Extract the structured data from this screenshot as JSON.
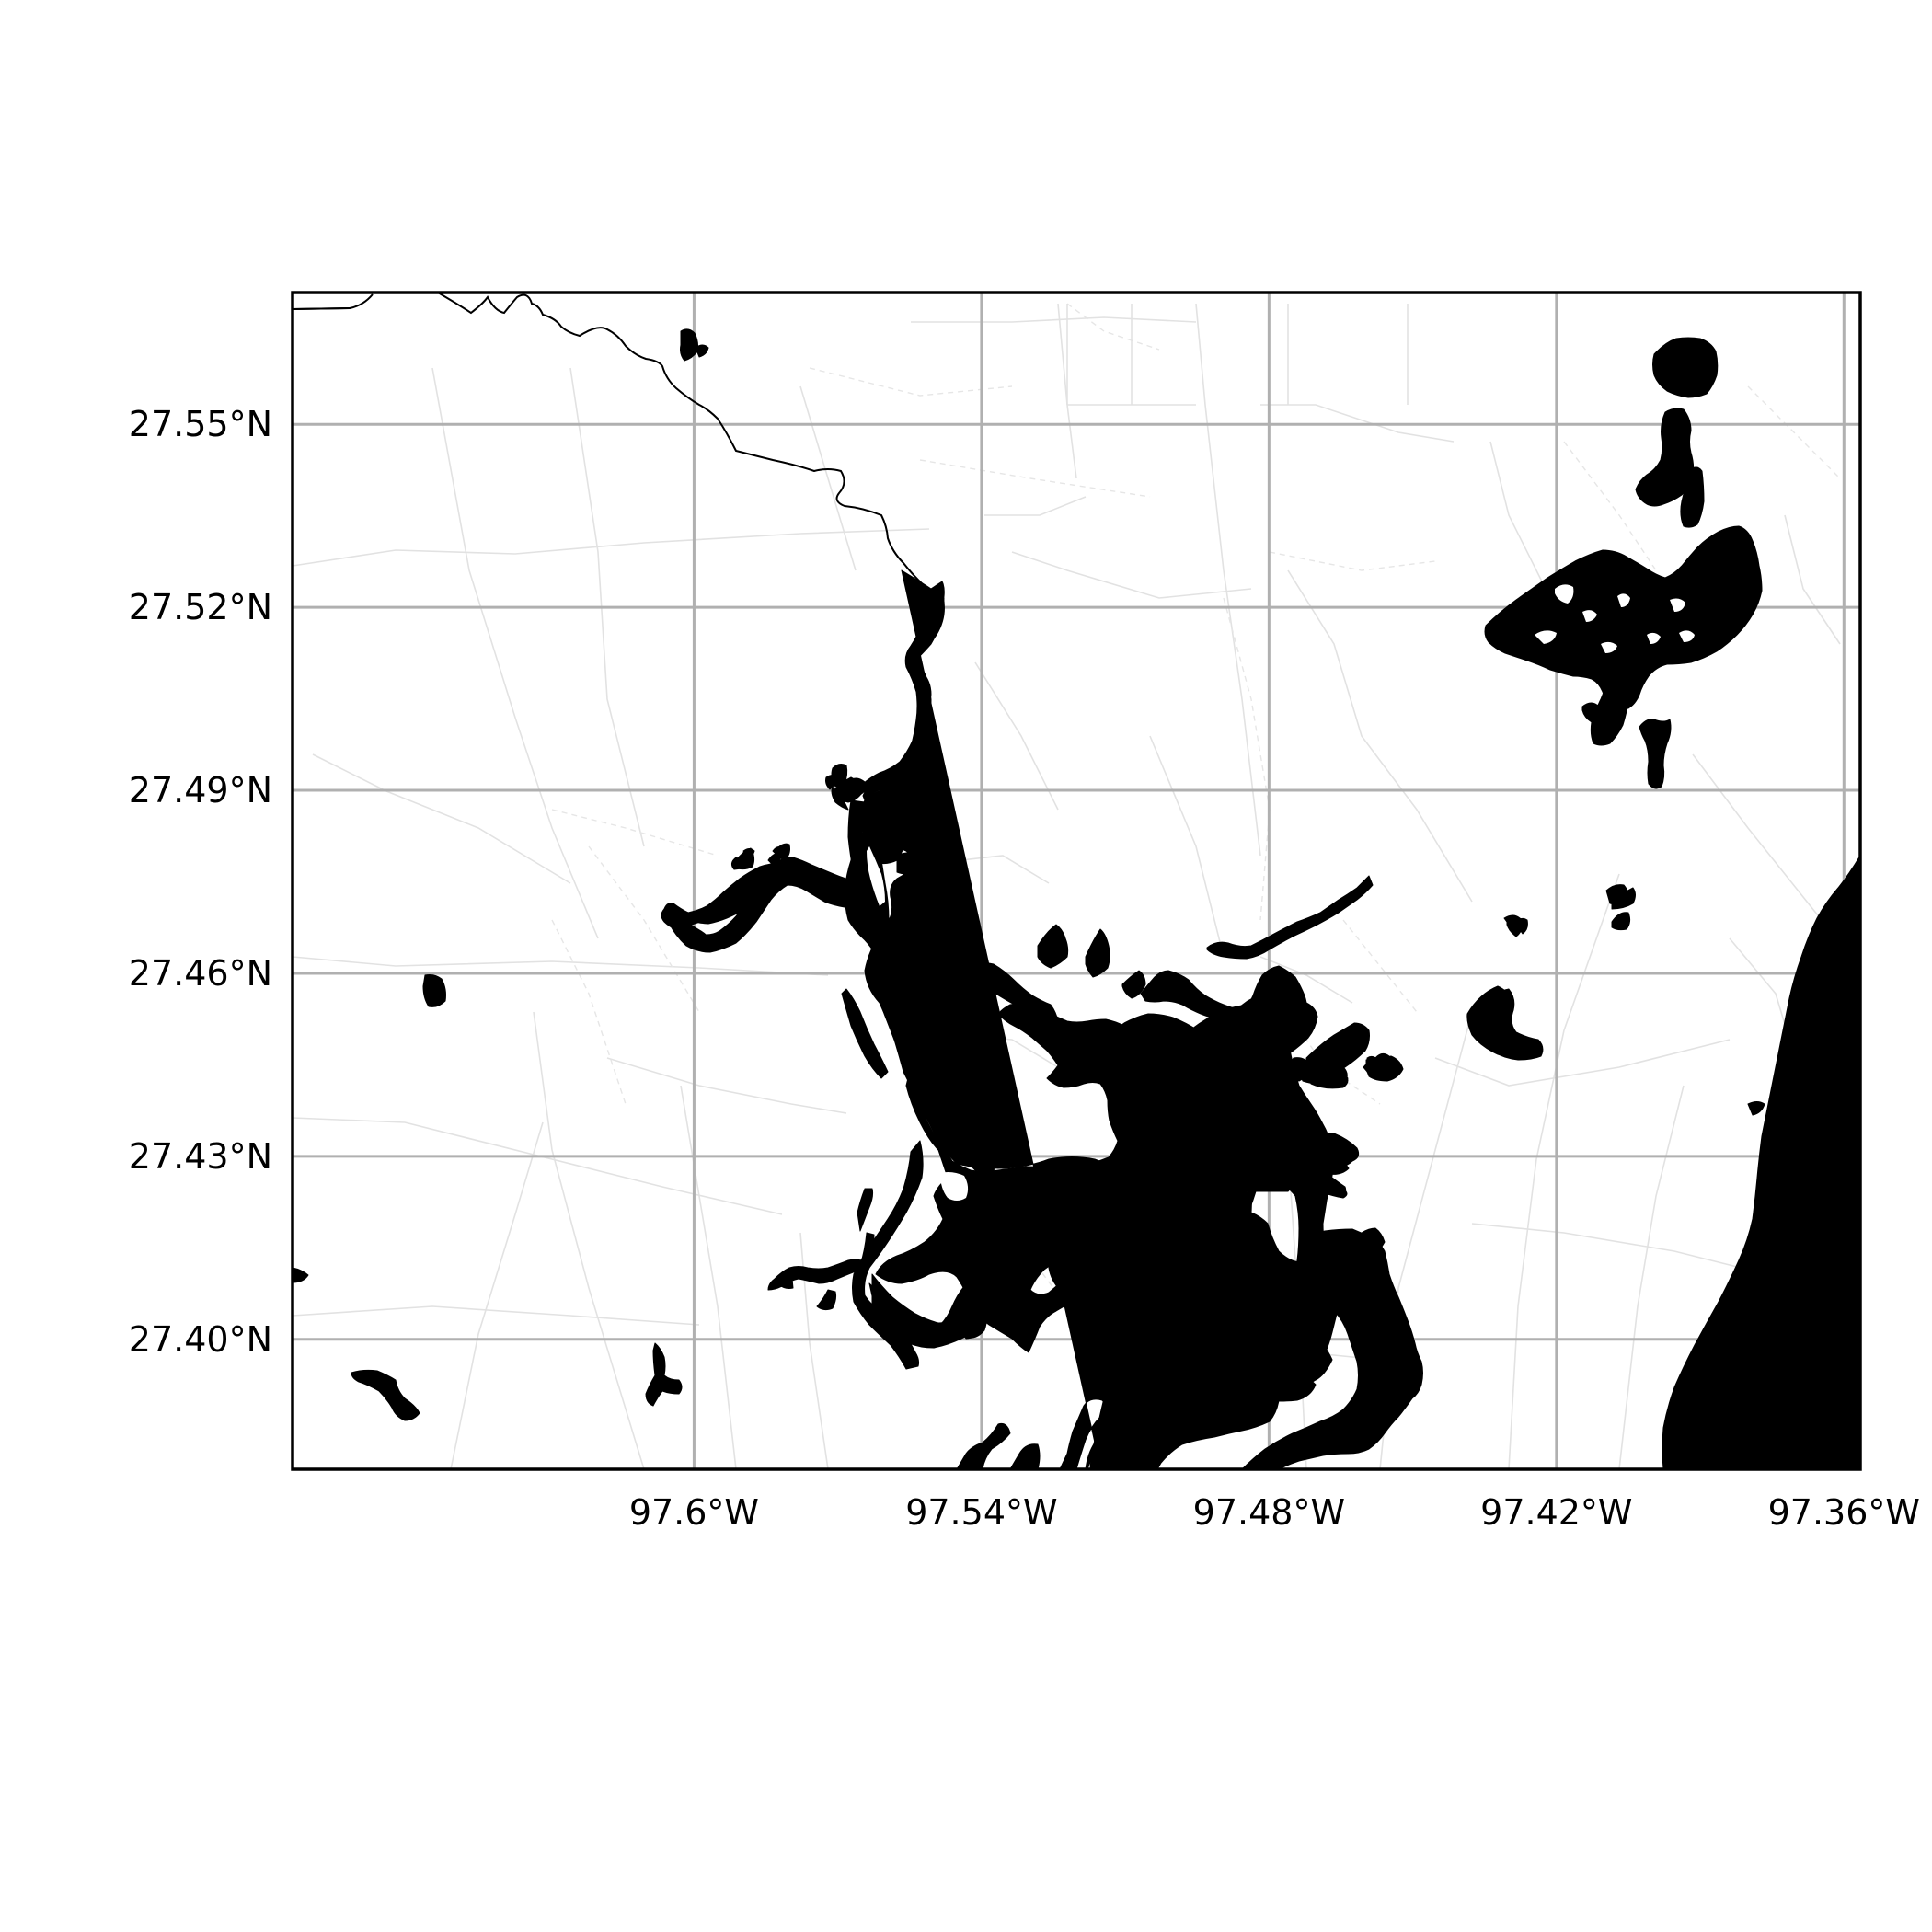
{
  "map": {
    "lon_range": [
      -97.6838,
      -97.3566
    ],
    "lat_range": [
      27.3787,
      27.5716
    ],
    "lon_ticks": [
      {
        "value": -97.6,
        "label": "97.6°W"
      },
      {
        "value": -97.54,
        "label": "97.54°W"
      },
      {
        "value": -97.48,
        "label": "97.48°W"
      },
      {
        "value": -97.42,
        "label": "97.42°W"
      },
      {
        "value": -97.36,
        "label": "97.36°W"
      }
    ],
    "lat_ticks": [
      {
        "value": 27.55,
        "label": "27.55°N"
      },
      {
        "value": 27.52,
        "label": "27.52°N"
      },
      {
        "value": 27.49,
        "label": "27.49°N"
      },
      {
        "value": 27.46,
        "label": "27.46°N"
      },
      {
        "value": 27.43,
        "label": "27.43°N"
      },
      {
        "value": 27.4,
        "label": "27.40°N"
      }
    ],
    "grid": true,
    "colors": {
      "water": "#000000",
      "land": "#ffffff",
      "grid": "#b0b0b0",
      "roads": "#e2e2e2",
      "frame": "#000000"
    }
  }
}
